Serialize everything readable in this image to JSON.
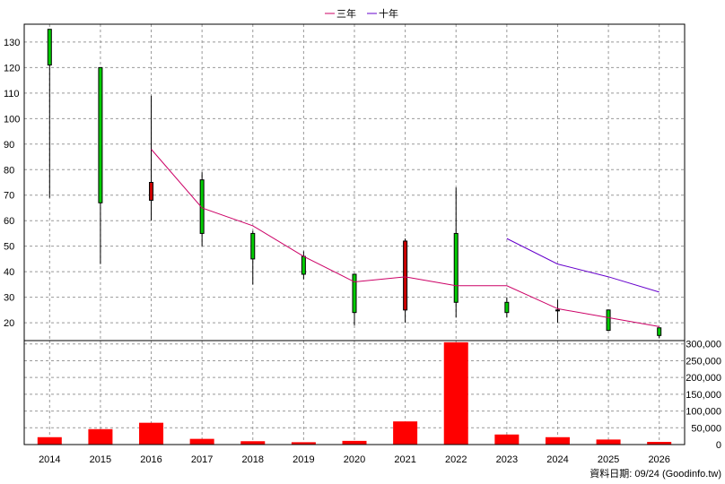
{
  "legend": {
    "items": [
      {
        "label": "三年",
        "color": "#cc0066"
      },
      {
        "label": "十年",
        "color": "#6600cc"
      }
    ]
  },
  "footer": {
    "source": "資料日期: 09/24  (Goodinfo.tw)"
  },
  "chart_data": [
    {
      "type": "candlestick",
      "categories": [
        "2014",
        "2015",
        "2016",
        "2017",
        "2018",
        "2019",
        "2020",
        "2021",
        "2022",
        "2023",
        "2024",
        "2025",
        "2026"
      ],
      "ylim": [
        13,
        137
      ],
      "yticks": [
        20,
        30,
        40,
        50,
        60,
        70,
        80,
        90,
        100,
        110,
        120,
        130
      ],
      "grid": true,
      "candles": [
        {
          "year": "2014",
          "open": 121,
          "close": 135,
          "high": 135,
          "low": 69
        },
        {
          "year": "2015",
          "open": 67,
          "close": 120,
          "high": 120,
          "low": 43
        },
        {
          "year": "2016",
          "open": 75,
          "close": 68,
          "high": 109,
          "low": 60
        },
        {
          "year": "2017",
          "open": 55,
          "close": 76,
          "high": 79,
          "low": 50
        },
        {
          "year": "2018",
          "open": 45,
          "close": 55,
          "high": 56,
          "low": 35
        },
        {
          "year": "2019",
          "open": 39,
          "close": 46,
          "high": 48,
          "low": 37
        },
        {
          "year": "2020",
          "open": 24,
          "close": 39,
          "high": 39,
          "low": 19
        },
        {
          "year": "2021",
          "open": 52,
          "close": 25,
          "high": 53,
          "low": 20
        },
        {
          "year": "2022",
          "open": 28,
          "close": 55,
          "high": 73,
          "low": 22
        },
        {
          "year": "2023",
          "open": 24,
          "close": 28,
          "high": 30,
          "low": 22
        },
        {
          "year": "2024",
          "open": 25,
          "close": 25,
          "high": 29,
          "low": 20
        },
        {
          "year": "2025",
          "open": 17,
          "close": 25,
          "high": 25,
          "low": 17
        },
        {
          "year": "2026",
          "open": 15,
          "close": 18,
          "high": 18,
          "low": 14
        }
      ],
      "series": [
        {
          "name": "三年",
          "color": "#cc0066",
          "values": [
            null,
            null,
            88,
            65,
            58,
            46,
            36,
            38,
            34.5,
            34.5,
            25.5,
            22,
            18.5
          ]
        },
        {
          "name": "十年",
          "color": "#6600cc",
          "values": [
            null,
            null,
            null,
            null,
            null,
            null,
            null,
            null,
            null,
            53,
            43,
            38,
            32
          ]
        }
      ],
      "up_color": "#00cc00",
      "down_color": "#cc0000"
    },
    {
      "type": "bar",
      "categories": [
        "2014",
        "2015",
        "2016",
        "2017",
        "2018",
        "2019",
        "2020",
        "2021",
        "2022",
        "2023",
        "2024",
        "2025",
        "2026"
      ],
      "values": [
        22000,
        46000,
        65000,
        17000,
        10000,
        7000,
        11000,
        69000,
        305000,
        30000,
        22000,
        15000,
        8000
      ],
      "ylim": [
        0,
        310000
      ],
      "yticks": [
        0,
        50000,
        100000,
        150000,
        200000,
        250000,
        300000
      ],
      "ytick_labels": [
        "0",
        "50,000",
        "100,000",
        "150,000",
        "200,000",
        "250,000",
        "300,000"
      ],
      "color": "#ff0000"
    }
  ]
}
